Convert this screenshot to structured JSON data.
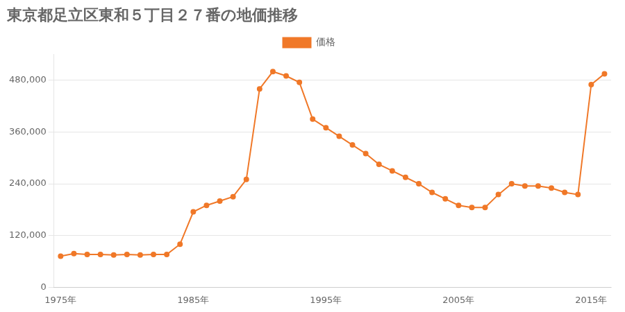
{
  "chart_data": {
    "type": "line",
    "title": "東京都足立区東和５丁目２７番の地価推移",
    "x": [
      1975,
      1976,
      1977,
      1978,
      1979,
      1980,
      1981,
      1982,
      1983,
      1984,
      1985,
      1986,
      1987,
      1988,
      1989,
      1990,
      1991,
      1992,
      1993,
      1994,
      1995,
      1996,
      1997,
      1998,
      1999,
      2000,
      2001,
      2002,
      2003,
      2004,
      2005,
      2006,
      2007,
      2008,
      2009,
      2010,
      2011,
      2012,
      2013,
      2014,
      2015,
      2016
    ],
    "series": [
      {
        "name": "価格",
        "color": "#f07828",
        "marker": "circle",
        "line_style": "solid",
        "values": [
          72000,
          78000,
          76000,
          76000,
          75000,
          76000,
          75000,
          76000,
          76000,
          100000,
          175000,
          190000,
          200000,
          210000,
          250000,
          460000,
          500000,
          490000,
          475000,
          390000,
          370000,
          350000,
          330000,
          310000,
          285000,
          270000,
          255000,
          240000,
          220000,
          205000,
          190000,
          185000,
          185000,
          215000,
          240000,
          235000,
          235000,
          230000,
          220000,
          215000,
          470000,
          495000
        ]
      }
    ],
    "xlim": [
      1974.5,
      2016.5
    ],
    "xticks": [
      {
        "value": 1975,
        "label": "1975年"
      },
      {
        "value": 1985,
        "label": "1985年"
      },
      {
        "value": 1995,
        "label": "1995年"
      },
      {
        "value": 2005,
        "label": "2005年"
      },
      {
        "value": 2015,
        "label": "2015年"
      }
    ],
    "ylim": [
      0,
      540000
    ],
    "yticks": [
      0,
      {
        "value": 120000,
        "label": "120,000"
      },
      {
        "value": 240000,
        "label": "240,000"
      },
      {
        "value": 360000,
        "label": "360,000"
      },
      {
        "value": 480000,
        "label": "480,000"
      }
    ],
    "grid": "y",
    "legend": "top"
  }
}
